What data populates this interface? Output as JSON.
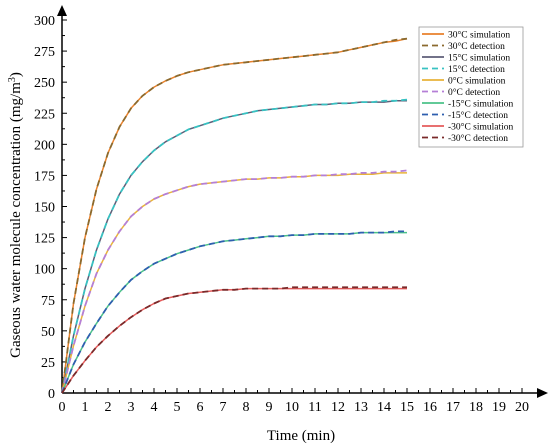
{
  "chart_data": {
    "type": "line",
    "title": "",
    "xlabel": "Time (min)",
    "ylabel_main": "Gaseous water molecule concentration (mg/m",
    "ylabel_sup": "3",
    "ylabel_close": ")",
    "xlim": [
      0,
      20
    ],
    "ylim": [
      0,
      300
    ],
    "x_ticks": [
      "0",
      "1",
      "2",
      "3",
      "4",
      "5",
      "6",
      "7",
      "8",
      "9",
      "10",
      "11",
      "12",
      "13",
      "14",
      "15",
      "16",
      "17",
      "18",
      "19",
      "20"
    ],
    "y_ticks": [
      "0",
      "25",
      "50",
      "75",
      "100",
      "125",
      "150",
      "175",
      "200",
      "225",
      "250",
      "275",
      "300"
    ],
    "grid": false,
    "legend_position": "top-right",
    "x": [
      0,
      0.5,
      1,
      1.5,
      2,
      2.5,
      3,
      3.5,
      4,
      4.5,
      5,
      5.5,
      6,
      6.5,
      7,
      7.5,
      8,
      8.5,
      9,
      9.5,
      10,
      10.5,
      11,
      11.5,
      12,
      12.5,
      13,
      13.5,
      14,
      14.5,
      15
    ],
    "series": [
      {
        "name": "30°C simulation",
        "color": "#E8812B",
        "style": "solid",
        "values": [
          0,
          72,
          125,
          164,
          193,
          214,
          229,
          239,
          246,
          251,
          255,
          258,
          260,
          262,
          264,
          265,
          266,
          267,
          268,
          269,
          270,
          271,
          272,
          273,
          274,
          276,
          278,
          280,
          282,
          283,
          285
        ]
      },
      {
        "name": "30°C detection",
        "color": "#8B6A2E",
        "style": "dashed",
        "values": [
          0,
          72,
          125,
          164,
          193,
          214,
          229,
          239,
          246,
          251,
          255,
          258,
          260,
          262,
          264,
          265,
          266,
          267,
          268,
          269,
          270,
          271,
          272,
          273,
          274,
          276,
          278,
          280,
          282,
          284,
          285
        ]
      },
      {
        "name": "15°C simulation",
        "color": "#5E5E78",
        "style": "solid",
        "values": [
          0,
          46,
          84,
          115,
          140,
          160,
          175,
          186,
          195,
          202,
          207,
          212,
          215,
          218,
          221,
          223,
          225,
          227,
          228,
          229,
          230,
          231,
          232,
          232,
          233,
          233,
          234,
          234,
          234,
          235,
          235
        ]
      },
      {
        "name": "15°C detection",
        "color": "#38C2C2",
        "style": "dashed",
        "values": [
          0,
          46,
          84,
          115,
          140,
          160,
          175,
          186,
          195,
          202,
          207,
          212,
          215,
          218,
          221,
          223,
          225,
          227,
          228,
          229,
          230,
          231,
          232,
          232,
          233,
          233,
          234,
          234,
          235,
          235,
          236
        ]
      },
      {
        "name": "0°C  simulation",
        "color": "#E8B33A",
        "style": "solid",
        "values": [
          0,
          38,
          70,
          96,
          115,
          130,
          142,
          150,
          156,
          160,
          163,
          166,
          168,
          169,
          170,
          171,
          172,
          172,
          173,
          173,
          174,
          174,
          175,
          175,
          175,
          176,
          176,
          176,
          177,
          177,
          177
        ]
      },
      {
        "name": "0°C  detection",
        "color": "#B57FD6",
        "style": "dashed",
        "values": [
          0,
          38,
          70,
          96,
          115,
          130,
          142,
          150,
          156,
          160,
          163,
          166,
          168,
          169,
          170,
          171,
          172,
          172,
          173,
          173,
          174,
          174,
          175,
          175,
          176,
          176,
          177,
          177,
          178,
          178,
          179
        ]
      },
      {
        "name": "-15°C simulation",
        "color": "#4CC28A",
        "style": "solid",
        "values": [
          0,
          23,
          41,
          56,
          70,
          81,
          91,
          98,
          104,
          108,
          112,
          115,
          118,
          120,
          122,
          123,
          124,
          125,
          126,
          126,
          127,
          127,
          128,
          128,
          128,
          128,
          129,
          129,
          129,
          129,
          129
        ]
      },
      {
        "name": "-15°C detection",
        "color": "#2E5FAF",
        "style": "dashed",
        "values": [
          0,
          23,
          41,
          56,
          70,
          81,
          91,
          98,
          104,
          108,
          112,
          115,
          118,
          120,
          122,
          123,
          124,
          125,
          126,
          126,
          127,
          127,
          128,
          128,
          128,
          128,
          129,
          129,
          129,
          130,
          130
        ]
      },
      {
        "name": "-30°C simulation",
        "color": "#E55C5C",
        "style": "solid",
        "values": [
          0,
          14,
          26,
          37,
          46,
          54,
          61,
          67,
          72,
          76,
          78,
          80,
          81,
          82,
          83,
          83,
          84,
          84,
          84,
          84,
          84,
          84,
          84,
          84,
          84,
          84,
          84,
          84,
          84,
          84,
          84
        ]
      },
      {
        "name": "-30°C detection",
        "color": "#7A2A2A",
        "style": "dashed",
        "values": [
          0,
          14,
          26,
          37,
          46,
          54,
          61,
          67,
          72,
          76,
          78,
          80,
          81,
          82,
          83,
          83,
          84,
          84,
          84,
          84,
          85,
          85,
          85,
          85,
          85,
          85,
          85,
          85,
          85,
          85,
          85
        ]
      }
    ]
  }
}
